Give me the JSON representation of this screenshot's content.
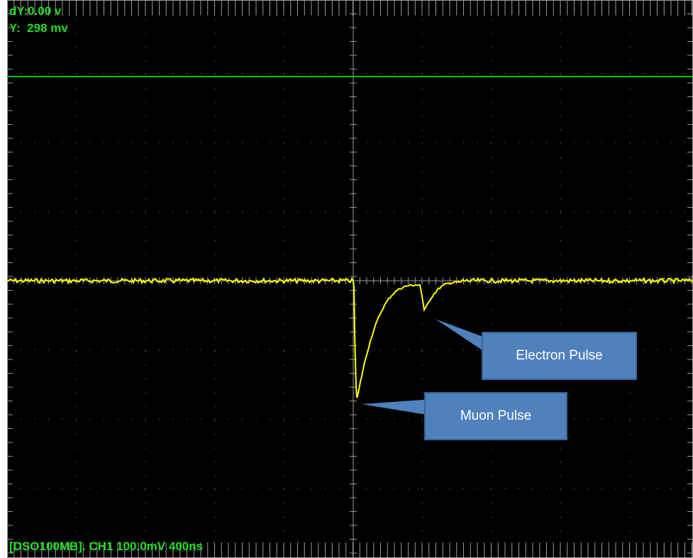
{
  "readouts": {
    "dy": "dY:0.00 v",
    "y": "Y:  298 mv"
  },
  "status": {
    "text": "[DSO100MB]. CH1 100.0mV 400ns"
  },
  "callouts": {
    "electron": "Electron Pulse",
    "muon": "Muon Pulse"
  },
  "colors": {
    "background": "#000000",
    "grid": "#bfbfbf",
    "trace_ch1": "#ffff00",
    "reference_line": "#00c000",
    "readout_text": "#22dd22",
    "callout_fill": "#4f81bd",
    "callout_text": "#ffffff"
  }
}
